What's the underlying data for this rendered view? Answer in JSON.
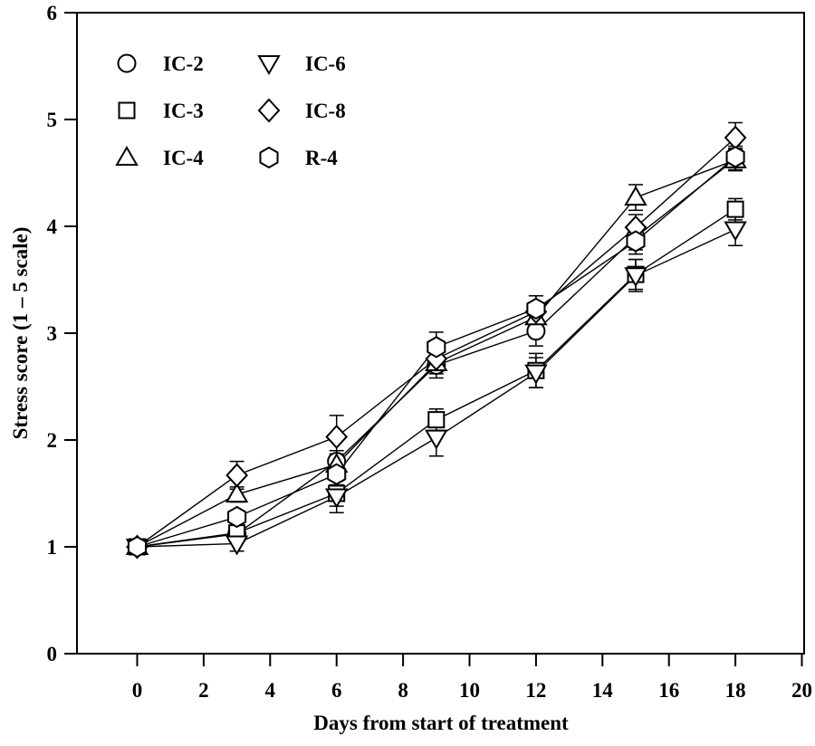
{
  "figure": {
    "background": "#ffffff",
    "stroke_color": "#000000",
    "marker_fill": "#ffffff"
  },
  "chart_data": {
    "type": "line",
    "title": "",
    "xlabel": "Days from start of treatment",
    "ylabel": "Stress score (1 – 5 scale)",
    "x": [
      0,
      3,
      6,
      9,
      12,
      15,
      18
    ],
    "xlim": [
      -2,
      20
    ],
    "ylim": [
      0,
      6
    ],
    "x_ticks": [
      0,
      2,
      4,
      6,
      8,
      10,
      12,
      14,
      16,
      18,
      20
    ],
    "y_ticks": [
      0,
      1,
      2,
      3,
      4,
      5,
      6
    ],
    "grid": false,
    "legend_position": "top-left",
    "legend_columns": [
      [
        "IC-2",
        "IC-3",
        "IC-4"
      ],
      [
        "IC-6",
        "IC-8",
        "R-4"
      ]
    ],
    "series": [
      {
        "name": "IC-2",
        "marker": "circle",
        "values": [
          1.0,
          1.12,
          1.8,
          2.7,
          3.02,
          3.9,
          4.63
        ],
        "errors": [
          0.02,
          0.05,
          0.1,
          0.12,
          0.14,
          0.12,
          0.1
        ]
      },
      {
        "name": "IC-3",
        "marker": "square",
        "values": [
          1.0,
          1.13,
          1.5,
          2.19,
          2.65,
          3.55,
          4.16
        ],
        "errors": [
          0.02,
          0.06,
          0.12,
          0.1,
          0.16,
          0.14,
          0.1
        ]
      },
      {
        "name": "IC-4",
        "marker": "triangle-up",
        "values": [
          1.0,
          1.49,
          1.77,
          2.72,
          3.15,
          4.27,
          4.62
        ],
        "errors": [
          0.02,
          0.07,
          0.1,
          0.1,
          0.12,
          0.12,
          0.1
        ]
      },
      {
        "name": "IC-6",
        "marker": "triangle-down",
        "values": [
          1.0,
          1.03,
          1.47,
          2.02,
          2.63,
          3.54,
          3.97
        ],
        "errors": [
          0.02,
          0.07,
          0.15,
          0.17,
          0.14,
          0.15,
          0.15
        ]
      },
      {
        "name": "IC-8",
        "marker": "diamond",
        "values": [
          1.0,
          1.67,
          2.03,
          2.76,
          3.2,
          3.99,
          4.83
        ],
        "errors": [
          0.02,
          0.13,
          0.2,
          0.12,
          0.15,
          0.12,
          0.14
        ]
      },
      {
        "name": "R-4",
        "marker": "hexagon",
        "values": [
          1.0,
          1.28,
          1.68,
          2.87,
          3.23,
          3.86,
          4.65
        ],
        "errors": [
          0.02,
          0.06,
          0.1,
          0.14,
          0.12,
          0.12,
          0.1
        ]
      }
    ]
  }
}
